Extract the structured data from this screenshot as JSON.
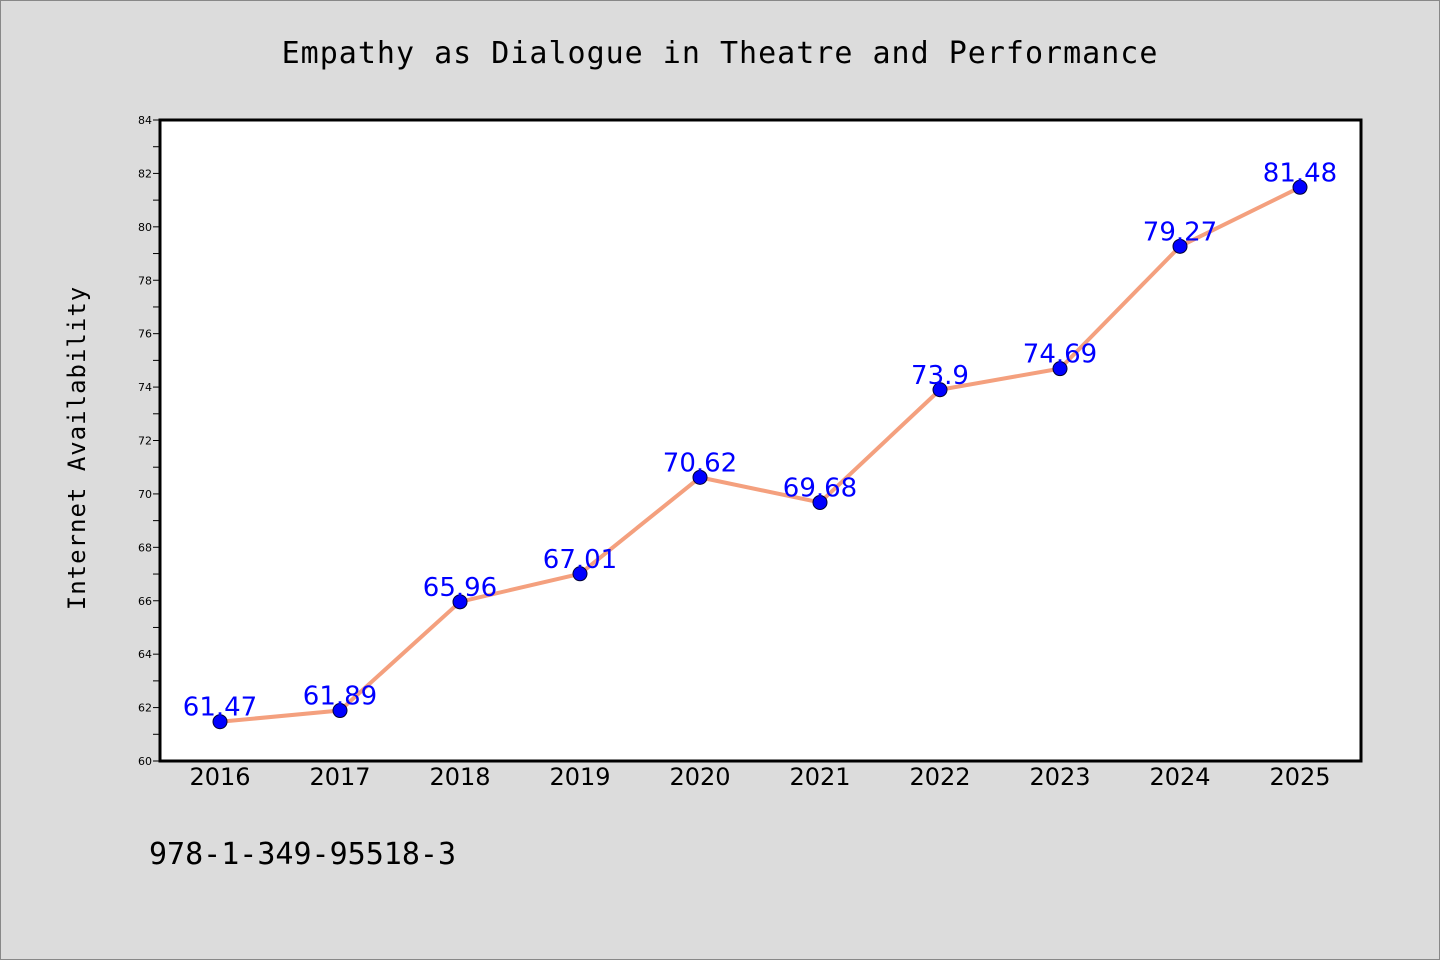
{
  "footer_text": "978-1-349-95518-3",
  "colors": {
    "background": "#dcdcdc",
    "plot_background": "#ffffff",
    "line": "#f4a07e",
    "marker": "#0000ff",
    "label": "#0000ff"
  },
  "chart_data": {
    "type": "line",
    "title": "Empathy as Dialogue in Theatre and Performance",
    "xlabel": "",
    "ylabel": "Internet Availability",
    "categories": [
      "2016",
      "2017",
      "2018",
      "2019",
      "2020",
      "2021",
      "2022",
      "2023",
      "2024",
      "2025"
    ],
    "series": [
      {
        "values": [
          61.47,
          61.89,
          65.96,
          67.01,
          70.62,
          69.68,
          73.9,
          74.69,
          79.27,
          81.48
        ],
        "labels": [
          "61.47",
          "61.89",
          "65.96",
          "67.01",
          "70.62",
          "69.68",
          "73.9",
          "74.69",
          "79.27",
          "81.48"
        ]
      }
    ],
    "ylim": [
      60,
      84
    ],
    "yticks": [
      "60",
      "62",
      "64",
      "66",
      "68",
      "70",
      "72",
      "74",
      "76",
      "78",
      "80",
      "82",
      "84"
    ],
    "grid": false,
    "legend": "none",
    "marker": "circle"
  }
}
